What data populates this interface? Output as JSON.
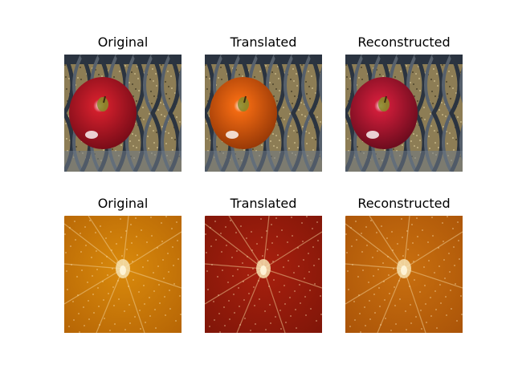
{
  "figure": {
    "rows": [
      {
        "subject": "red-apple-on-wire-mesh",
        "panels": [
          {
            "title": "Original",
            "icon": "apple-on-mesh-image",
            "apple_color": "#d11f2c",
            "apple_shade": "#7a0c18"
          },
          {
            "title": "Translated",
            "icon": "orange-on-mesh-image",
            "apple_color": "#f26a12",
            "apple_shade": "#9a3a07"
          },
          {
            "title": "Reconstructed",
            "icon": "apple-on-mesh-image",
            "apple_color": "#cf1d3a",
            "apple_shade": "#6e0c1e"
          }
        ]
      },
      {
        "subject": "fruit-cross-section-closeup",
        "panels": [
          {
            "title": "Original",
            "icon": "orange-flesh-image",
            "flesh_color": "#d98a0c",
            "flesh_shade": "#b36205"
          },
          {
            "title": "Translated",
            "icon": "apple-flesh-image",
            "flesh_color": "#a8200e",
            "flesh_shade": "#7c1508"
          },
          {
            "title": "Reconstructed",
            "icon": "orange-flesh-image",
            "flesh_color": "#c9700f",
            "flesh_shade": "#a85208"
          }
        ]
      }
    ]
  }
}
